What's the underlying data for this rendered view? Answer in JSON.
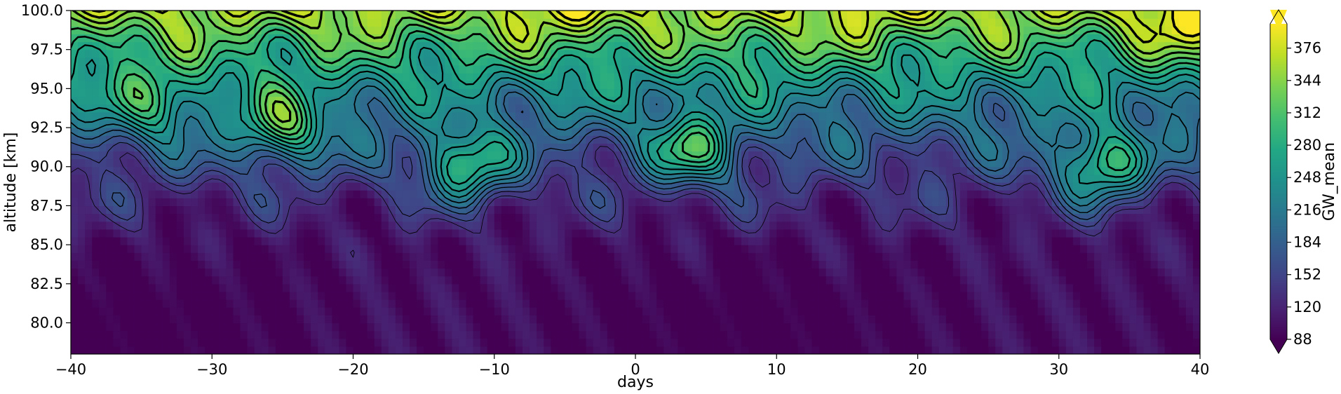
{
  "chart_data": {
    "type": "heatmap",
    "title": "",
    "xlabel": "days",
    "ylabel": "altitude [km]",
    "xlim": [
      -40,
      40
    ],
    "ylim": [
      78,
      100
    ],
    "x_ticks": [
      -40,
      -30,
      -20,
      -10,
      0,
      10,
      20,
      30,
      40
    ],
    "x_tick_labels": [
      "−40",
      "−30",
      "−20",
      "−10",
      "0",
      "10",
      "20",
      "30",
      "40"
    ],
    "y_ticks": [
      80.0,
      82.5,
      85.0,
      87.5,
      90.0,
      92.5,
      95.0,
      97.5,
      100.0
    ],
    "y_tick_labels": [
      "80.0",
      "82.5",
      "85.0",
      "87.5",
      "90.0",
      "92.5",
      "95.0",
      "97.5",
      "100.0"
    ],
    "colorbar": {
      "label": "GW_mean",
      "range": [
        88,
        400
      ],
      "ticks": [
        88,
        120,
        152,
        184,
        216,
        248,
        280,
        312,
        344,
        376
      ],
      "tick_labels": [
        "88",
        "120",
        "152",
        "184",
        "216",
        "248",
        "280",
        "312",
        "344",
        "376"
      ],
      "extend": "both",
      "colormap": "viridis"
    },
    "field_description": {
      "z_low": 100,
      "z_high_top": 360,
      "features": [
        {
          "day": 4,
          "alt": 91.0,
          "peak": 300
        },
        {
          "day": 9.5,
          "alt": 97.5,
          "peak": 320
        },
        {
          "day": -34,
          "alt": 94.0,
          "peak": 300
        },
        {
          "day": -25,
          "alt": 92.5,
          "peak": 320
        },
        {
          "day": -12,
          "alt": 90.0,
          "peak": 300
        },
        {
          "day": 33,
          "alt": 90.0,
          "peak": 310
        },
        {
          "day": -5,
          "alt": 99.5,
          "peak": 380
        },
        {
          "day": 17,
          "alt": 99.5,
          "peak": 370
        },
        {
          "day": 39,
          "alt": 99.0,
          "peak": 390
        }
      ]
    }
  }
}
